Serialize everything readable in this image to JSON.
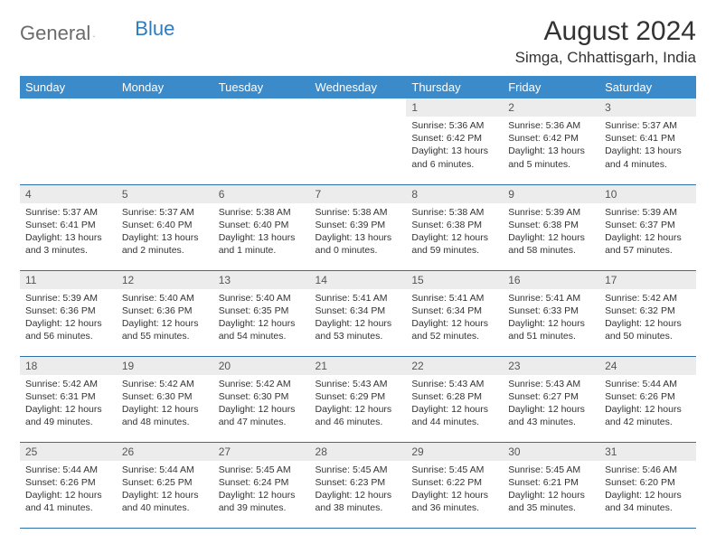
{
  "logo": {
    "part1": "General",
    "part2": "Blue"
  },
  "title": "August 2024",
  "location": "Simga, Chhattisgarh, India",
  "colors": {
    "header_bg": "#3b8bca",
    "header_text": "#ffffff",
    "daynum_bg": "#ececec",
    "border": "#2f6fa8",
    "body_text": "#333333",
    "logo_gray": "#6b6b6b",
    "logo_blue": "#2f7bbf"
  },
  "weekdays": [
    "Sunday",
    "Monday",
    "Tuesday",
    "Wednesday",
    "Thursday",
    "Friday",
    "Saturday"
  ],
  "weeks": [
    [
      {
        "n": "",
        "sr": "",
        "ss": "",
        "dl": ""
      },
      {
        "n": "",
        "sr": "",
        "ss": "",
        "dl": ""
      },
      {
        "n": "",
        "sr": "",
        "ss": "",
        "dl": ""
      },
      {
        "n": "",
        "sr": "",
        "ss": "",
        "dl": ""
      },
      {
        "n": "1",
        "sr": "Sunrise: 5:36 AM",
        "ss": "Sunset: 6:42 PM",
        "dl": "Daylight: 13 hours and 6 minutes."
      },
      {
        "n": "2",
        "sr": "Sunrise: 5:36 AM",
        "ss": "Sunset: 6:42 PM",
        "dl": "Daylight: 13 hours and 5 minutes."
      },
      {
        "n": "3",
        "sr": "Sunrise: 5:37 AM",
        "ss": "Sunset: 6:41 PM",
        "dl": "Daylight: 13 hours and 4 minutes."
      }
    ],
    [
      {
        "n": "4",
        "sr": "Sunrise: 5:37 AM",
        "ss": "Sunset: 6:41 PM",
        "dl": "Daylight: 13 hours and 3 minutes."
      },
      {
        "n": "5",
        "sr": "Sunrise: 5:37 AM",
        "ss": "Sunset: 6:40 PM",
        "dl": "Daylight: 13 hours and 2 minutes."
      },
      {
        "n": "6",
        "sr": "Sunrise: 5:38 AM",
        "ss": "Sunset: 6:40 PM",
        "dl": "Daylight: 13 hours and 1 minute."
      },
      {
        "n": "7",
        "sr": "Sunrise: 5:38 AM",
        "ss": "Sunset: 6:39 PM",
        "dl": "Daylight: 13 hours and 0 minutes."
      },
      {
        "n": "8",
        "sr": "Sunrise: 5:38 AM",
        "ss": "Sunset: 6:38 PM",
        "dl": "Daylight: 12 hours and 59 minutes."
      },
      {
        "n": "9",
        "sr": "Sunrise: 5:39 AM",
        "ss": "Sunset: 6:38 PM",
        "dl": "Daylight: 12 hours and 58 minutes."
      },
      {
        "n": "10",
        "sr": "Sunrise: 5:39 AM",
        "ss": "Sunset: 6:37 PM",
        "dl": "Daylight: 12 hours and 57 minutes."
      }
    ],
    [
      {
        "n": "11",
        "sr": "Sunrise: 5:39 AM",
        "ss": "Sunset: 6:36 PM",
        "dl": "Daylight: 12 hours and 56 minutes."
      },
      {
        "n": "12",
        "sr": "Sunrise: 5:40 AM",
        "ss": "Sunset: 6:36 PM",
        "dl": "Daylight: 12 hours and 55 minutes."
      },
      {
        "n": "13",
        "sr": "Sunrise: 5:40 AM",
        "ss": "Sunset: 6:35 PM",
        "dl": "Daylight: 12 hours and 54 minutes."
      },
      {
        "n": "14",
        "sr": "Sunrise: 5:41 AM",
        "ss": "Sunset: 6:34 PM",
        "dl": "Daylight: 12 hours and 53 minutes."
      },
      {
        "n": "15",
        "sr": "Sunrise: 5:41 AM",
        "ss": "Sunset: 6:34 PM",
        "dl": "Daylight: 12 hours and 52 minutes."
      },
      {
        "n": "16",
        "sr": "Sunrise: 5:41 AM",
        "ss": "Sunset: 6:33 PM",
        "dl": "Daylight: 12 hours and 51 minutes."
      },
      {
        "n": "17",
        "sr": "Sunrise: 5:42 AM",
        "ss": "Sunset: 6:32 PM",
        "dl": "Daylight: 12 hours and 50 minutes."
      }
    ],
    [
      {
        "n": "18",
        "sr": "Sunrise: 5:42 AM",
        "ss": "Sunset: 6:31 PM",
        "dl": "Daylight: 12 hours and 49 minutes."
      },
      {
        "n": "19",
        "sr": "Sunrise: 5:42 AM",
        "ss": "Sunset: 6:30 PM",
        "dl": "Daylight: 12 hours and 48 minutes."
      },
      {
        "n": "20",
        "sr": "Sunrise: 5:42 AM",
        "ss": "Sunset: 6:30 PM",
        "dl": "Daylight: 12 hours and 47 minutes."
      },
      {
        "n": "21",
        "sr": "Sunrise: 5:43 AM",
        "ss": "Sunset: 6:29 PM",
        "dl": "Daylight: 12 hours and 46 minutes."
      },
      {
        "n": "22",
        "sr": "Sunrise: 5:43 AM",
        "ss": "Sunset: 6:28 PM",
        "dl": "Daylight: 12 hours and 44 minutes."
      },
      {
        "n": "23",
        "sr": "Sunrise: 5:43 AM",
        "ss": "Sunset: 6:27 PM",
        "dl": "Daylight: 12 hours and 43 minutes."
      },
      {
        "n": "24",
        "sr": "Sunrise: 5:44 AM",
        "ss": "Sunset: 6:26 PM",
        "dl": "Daylight: 12 hours and 42 minutes."
      }
    ],
    [
      {
        "n": "25",
        "sr": "Sunrise: 5:44 AM",
        "ss": "Sunset: 6:26 PM",
        "dl": "Daylight: 12 hours and 41 minutes."
      },
      {
        "n": "26",
        "sr": "Sunrise: 5:44 AM",
        "ss": "Sunset: 6:25 PM",
        "dl": "Daylight: 12 hours and 40 minutes."
      },
      {
        "n": "27",
        "sr": "Sunrise: 5:45 AM",
        "ss": "Sunset: 6:24 PM",
        "dl": "Daylight: 12 hours and 39 minutes."
      },
      {
        "n": "28",
        "sr": "Sunrise: 5:45 AM",
        "ss": "Sunset: 6:23 PM",
        "dl": "Daylight: 12 hours and 38 minutes."
      },
      {
        "n": "29",
        "sr": "Sunrise: 5:45 AM",
        "ss": "Sunset: 6:22 PM",
        "dl": "Daylight: 12 hours and 36 minutes."
      },
      {
        "n": "30",
        "sr": "Sunrise: 5:45 AM",
        "ss": "Sunset: 6:21 PM",
        "dl": "Daylight: 12 hours and 35 minutes."
      },
      {
        "n": "31",
        "sr": "Sunrise: 5:46 AM",
        "ss": "Sunset: 6:20 PM",
        "dl": "Daylight: 12 hours and 34 minutes."
      }
    ]
  ]
}
